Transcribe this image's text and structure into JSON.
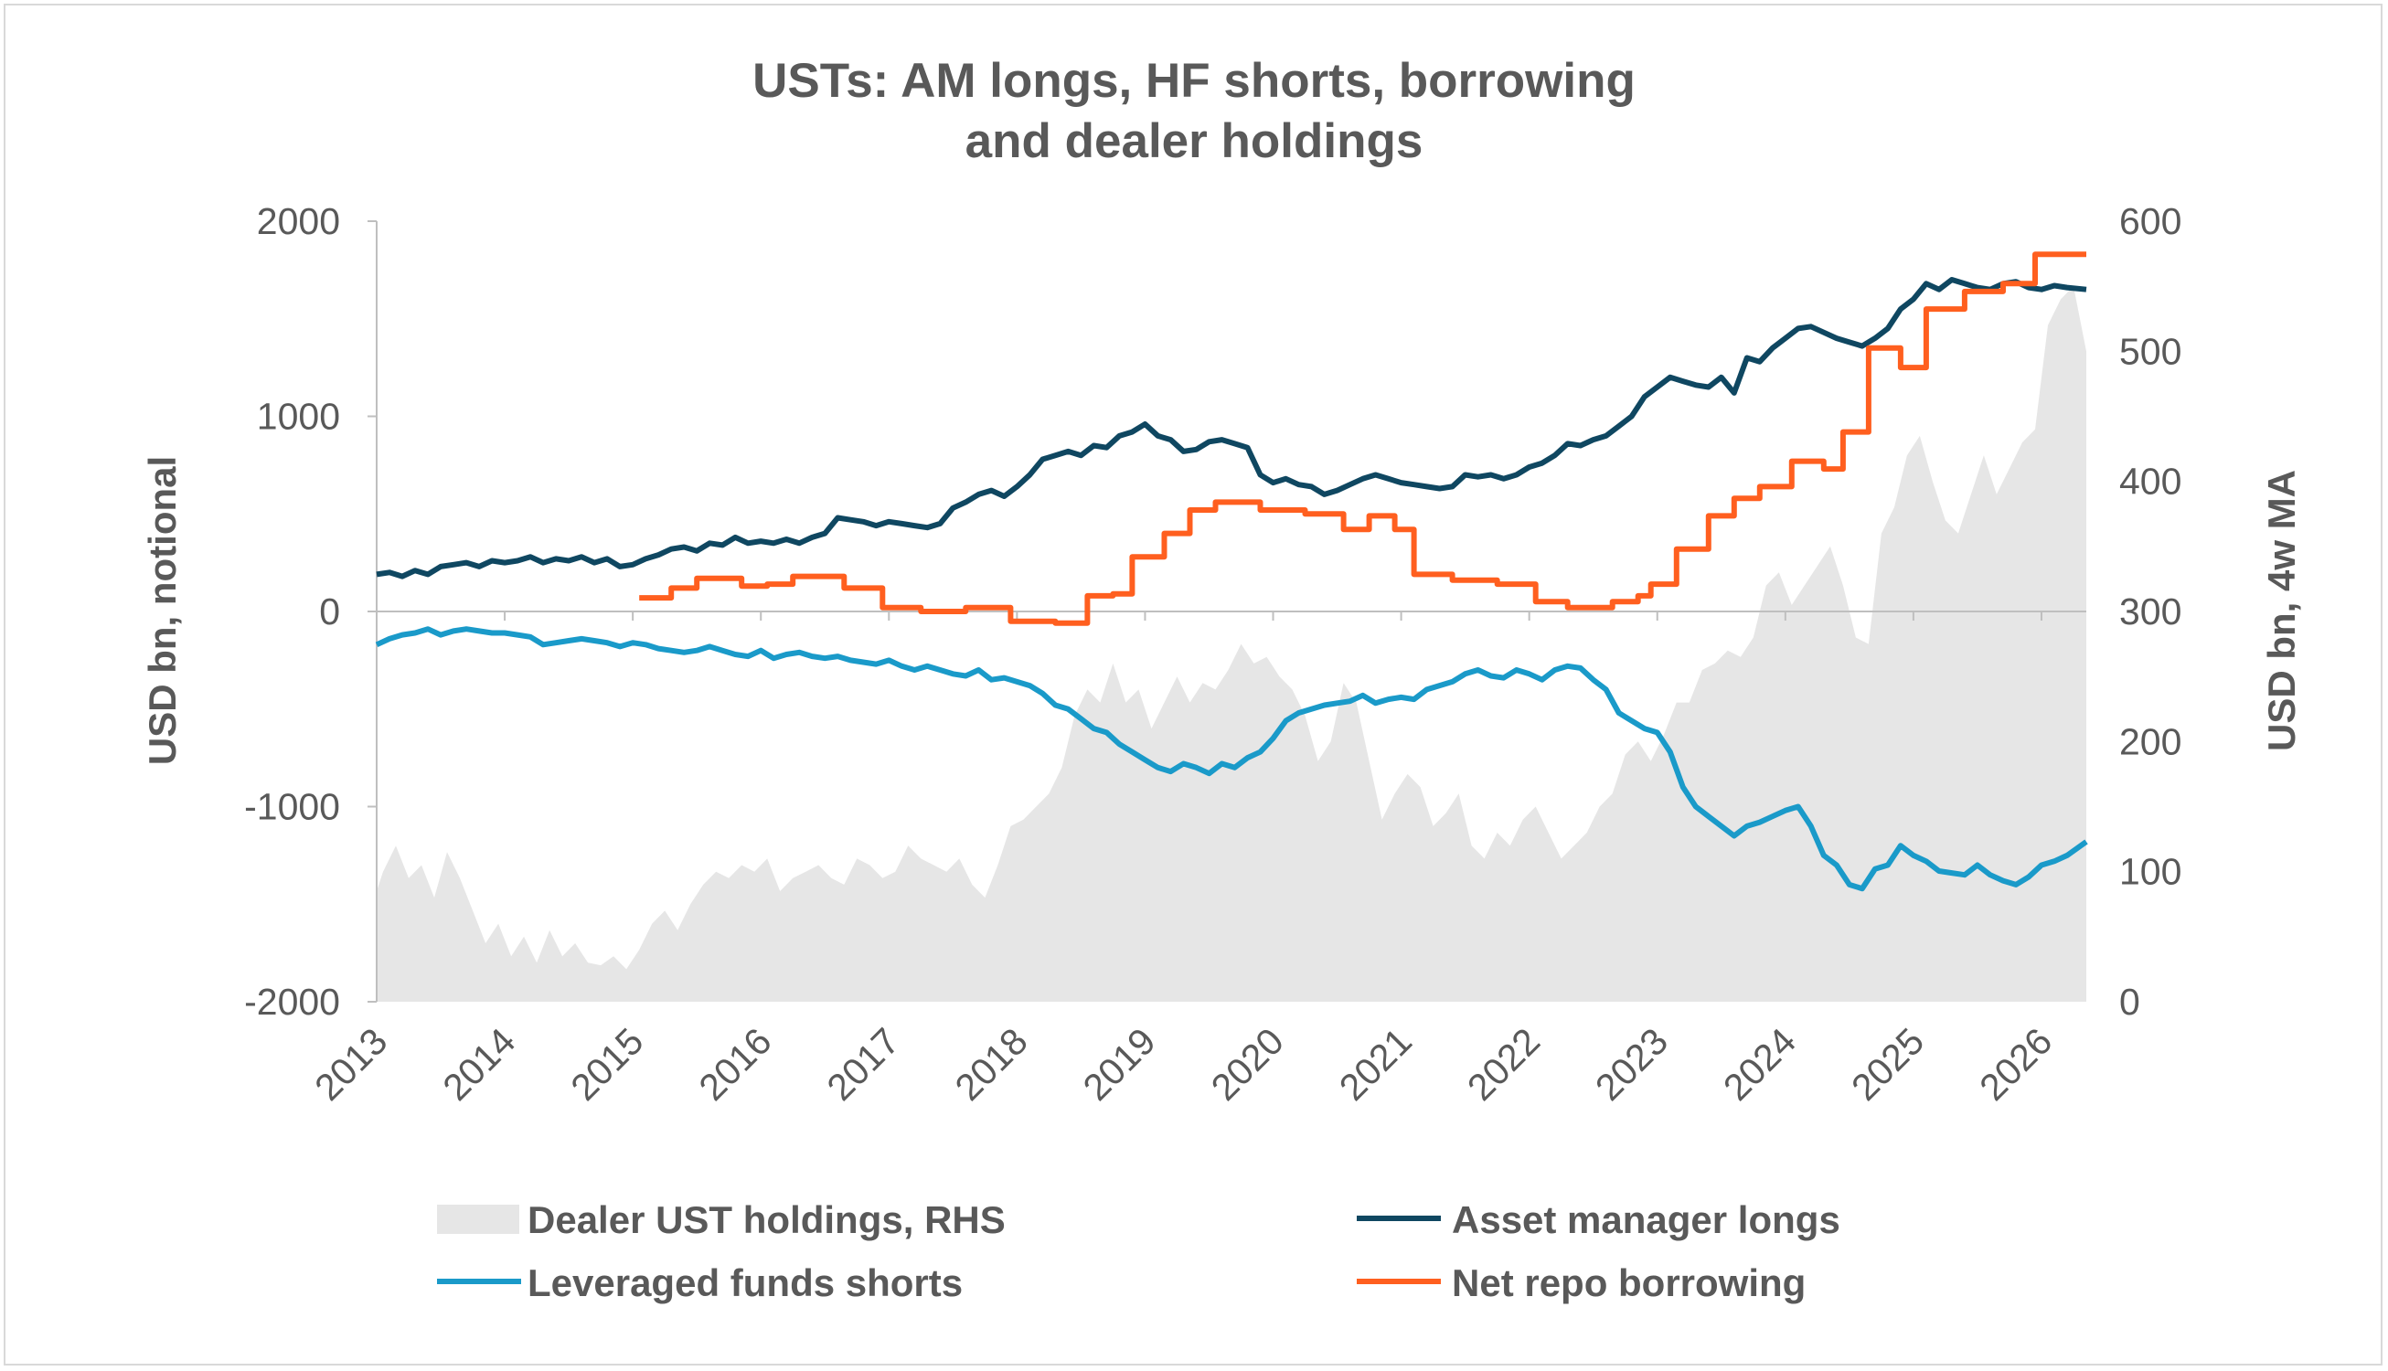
{
  "chart_data": {
    "type": "line",
    "title_line1": "USTs: AM longs, HF shorts, borrowing",
    "title_line2": "and dealer holdings",
    "ylabel_left": "USD bn, notional",
    "ylabel_right": "USD bn, 4w MA",
    "ylim_left": [
      -2000,
      2000
    ],
    "ylim_right": [
      0,
      600
    ],
    "yticks_left": [
      "2000",
      "1000",
      "0",
      "-1000",
      "-2000"
    ],
    "yticks_right": [
      "600",
      "500",
      "400",
      "300",
      "200",
      "100",
      "0"
    ],
    "xlim": [
      2013.0,
      2026.35
    ],
    "xticks": [
      "2013",
      "2014",
      "2015",
      "2016",
      "2017",
      "2018",
      "2019",
      "2020",
      "2021",
      "2022",
      "2023",
      "2024",
      "2025",
      "2026"
    ],
    "grid": false,
    "legend_position": "bottom",
    "series": [
      {
        "name": "Dealer UST holdings, RHS",
        "kind": "area",
        "axis": "right",
        "color": "#e6e6e6",
        "x": [
          2013.0,
          2013.05,
          2013.15,
          2013.25,
          2013.35,
          2013.45,
          2013.55,
          2013.65,
          2013.75,
          2013.85,
          2013.95,
          2014.05,
          2014.15,
          2014.25,
          2014.35,
          2014.45,
          2014.55,
          2014.65,
          2014.75,
          2014.85,
          2014.95,
          2015.05,
          2015.15,
          2015.25,
          2015.35,
          2015.45,
          2015.55,
          2015.65,
          2015.75,
          2015.85,
          2015.95,
          2016.05,
          2016.15,
          2016.25,
          2016.35,
          2016.45,
          2016.55,
          2016.65,
          2016.75,
          2016.85,
          2016.95,
          2017.05,
          2017.15,
          2017.25,
          2017.35,
          2017.45,
          2017.55,
          2017.65,
          2017.75,
          2017.85,
          2017.95,
          2018.05,
          2018.15,
          2018.25,
          2018.35,
          2018.45,
          2018.55,
          2018.65,
          2018.75,
          2018.85,
          2018.95,
          2019.05,
          2019.15,
          2019.25,
          2019.35,
          2019.45,
          2019.55,
          2019.65,
          2019.75,
          2019.85,
          2019.95,
          2020.05,
          2020.15,
          2020.25,
          2020.35,
          2020.45,
          2020.55,
          2020.65,
          2020.75,
          2020.85,
          2020.95,
          2021.05,
          2021.15,
          2021.25,
          2021.35,
          2021.45,
          2021.55,
          2021.65,
          2021.75,
          2021.85,
          2021.95,
          2022.05,
          2022.15,
          2022.25,
          2022.35,
          2022.45,
          2022.55,
          2022.65,
          2022.75,
          2022.85,
          2022.95,
          2023.05,
          2023.15,
          2023.25,
          2023.35,
          2023.45,
          2023.55,
          2023.65,
          2023.75,
          2023.85,
          2023.95,
          2024.05,
          2024.15,
          2024.25,
          2024.35,
          2024.45,
          2024.55,
          2024.65,
          2024.75,
          2024.85,
          2024.95,
          2025.05,
          2025.15,
          2025.25,
          2025.35,
          2025.45,
          2025.55,
          2025.65,
          2025.75,
          2025.85,
          2025.95,
          2026.05,
          2026.15,
          2026.25,
          2026.35
        ],
        "values": [
          85,
          100,
          120,
          95,
          105,
          80,
          115,
          95,
          70,
          45,
          60,
          35,
          50,
          30,
          55,
          35,
          45,
          30,
          28,
          35,
          25,
          40,
          60,
          70,
          55,
          75,
          90,
          100,
          95,
          105,
          100,
          110,
          85,
          95,
          100,
          105,
          95,
          90,
          110,
          105,
          95,
          100,
          120,
          110,
          105,
          100,
          110,
          90,
          80,
          105,
          135,
          140,
          150,
          160,
          180,
          220,
          240,
          230,
          260,
          230,
          240,
          210,
          230,
          250,
          230,
          245,
          240,
          255,
          275,
          260,
          265,
          250,
          240,
          220,
          185,
          200,
          245,
          230,
          185,
          140,
          160,
          175,
          165,
          135,
          145,
          160,
          120,
          110,
          130,
          120,
          140,
          150,
          130,
          110,
          120,
          130,
          150,
          160,
          190,
          200,
          185,
          205,
          230,
          230,
          255,
          260,
          270,
          265,
          280,
          320,
          330,
          305,
          320,
          335,
          350,
          320,
          280,
          275,
          360,
          380,
          420,
          435,
          400,
          370,
          360,
          390,
          420,
          390,
          410,
          430,
          440,
          520,
          540,
          550,
          500
        ]
      },
      {
        "name": "Asset manager longs",
        "kind": "line",
        "axis": "left",
        "color": "#0f4761",
        "x": [
          2013.0,
          2013.1,
          2013.2,
          2013.3,
          2013.4,
          2013.5,
          2013.6,
          2013.7,
          2013.8,
          2013.9,
          2014.0,
          2014.1,
          2014.2,
          2014.3,
          2014.4,
          2014.5,
          2014.6,
          2014.7,
          2014.8,
          2014.9,
          2015.0,
          2015.1,
          2015.2,
          2015.3,
          2015.4,
          2015.5,
          2015.6,
          2015.7,
          2015.8,
          2015.9,
          2016.0,
          2016.1,
          2016.2,
          2016.3,
          2016.4,
          2016.5,
          2016.6,
          2016.7,
          2016.8,
          2016.9,
          2017.0,
          2017.1,
          2017.2,
          2017.3,
          2017.4,
          2017.5,
          2017.6,
          2017.7,
          2017.8,
          2017.9,
          2018.0,
          2018.1,
          2018.2,
          2018.3,
          2018.4,
          2018.5,
          2018.6,
          2018.7,
          2018.8,
          2018.9,
          2019.0,
          2019.1,
          2019.2,
          2019.3,
          2019.4,
          2019.5,
          2019.6,
          2019.7,
          2019.8,
          2019.9,
          2020.0,
          2020.1,
          2020.2,
          2020.3,
          2020.4,
          2020.5,
          2020.6,
          2020.7,
          2020.8,
          2020.9,
          2021.0,
          2021.1,
          2021.2,
          2021.3,
          2021.4,
          2021.5,
          2021.6,
          2021.7,
          2021.8,
          2021.9,
          2022.0,
          2022.1,
          2022.2,
          2022.3,
          2022.4,
          2022.5,
          2022.6,
          2022.7,
          2022.8,
          2022.9,
          2023.0,
          2023.1,
          2023.2,
          2023.3,
          2023.4,
          2023.5,
          2023.6,
          2023.7,
          2023.8,
          2023.9,
          2024.0,
          2024.1,
          2024.2,
          2024.3,
          2024.4,
          2024.5,
          2024.6,
          2024.7,
          2024.8,
          2024.9,
          2025.0,
          2025.1,
          2025.2,
          2025.3,
          2025.4,
          2025.5,
          2025.6,
          2025.7,
          2025.8,
          2025.9,
          2026.0,
          2026.1,
          2026.2,
          2026.35
        ],
        "values": [
          190,
          200,
          180,
          210,
          190,
          230,
          240,
          250,
          230,
          260,
          250,
          260,
          280,
          250,
          270,
          260,
          280,
          250,
          270,
          230,
          240,
          270,
          290,
          320,
          330,
          310,
          350,
          340,
          380,
          350,
          360,
          350,
          370,
          350,
          380,
          400,
          480,
          470,
          460,
          440,
          460,
          450,
          440,
          430,
          450,
          530,
          560,
          600,
          620,
          590,
          640,
          700,
          780,
          800,
          820,
          800,
          850,
          840,
          900,
          920,
          960,
          900,
          880,
          820,
          830,
          870,
          880,
          860,
          840,
          700,
          660,
          680,
          650,
          640,
          600,
          620,
          650,
          680,
          700,
          680,
          660,
          650,
          640,
          630,
          640,
          700,
          690,
          700,
          680,
          700,
          740,
          760,
          800,
          860,
          850,
          880,
          900,
          950,
          1000,
          1100,
          1150,
          1200,
          1180,
          1160,
          1150,
          1200,
          1120,
          1300,
          1280,
          1350,
          1400,
          1450,
          1460,
          1430,
          1400,
          1380,
          1360,
          1400,
          1450,
          1550,
          1600,
          1680,
          1650,
          1700,
          1680,
          1660,
          1650,
          1680,
          1690,
          1660,
          1650,
          1670,
          1660,
          1650
        ]
      },
      {
        "name": "Leveraged funds shorts",
        "kind": "line",
        "axis": "left",
        "color": "#1a9ac9",
        "x": [
          2013.0,
          2013.1,
          2013.2,
          2013.3,
          2013.4,
          2013.5,
          2013.6,
          2013.7,
          2013.8,
          2013.9,
          2014.0,
          2014.1,
          2014.2,
          2014.3,
          2014.4,
          2014.5,
          2014.6,
          2014.7,
          2014.8,
          2014.9,
          2015.0,
          2015.1,
          2015.2,
          2015.3,
          2015.4,
          2015.5,
          2015.6,
          2015.7,
          2015.8,
          2015.9,
          2016.0,
          2016.1,
          2016.2,
          2016.3,
          2016.4,
          2016.5,
          2016.6,
          2016.7,
          2016.8,
          2016.9,
          2017.0,
          2017.1,
          2017.2,
          2017.3,
          2017.4,
          2017.5,
          2017.6,
          2017.7,
          2017.8,
          2017.9,
          2018.0,
          2018.1,
          2018.2,
          2018.3,
          2018.4,
          2018.5,
          2018.6,
          2018.7,
          2018.8,
          2018.9,
          2019.0,
          2019.1,
          2019.2,
          2019.3,
          2019.4,
          2019.5,
          2019.6,
          2019.7,
          2019.8,
          2019.9,
          2020.0,
          2020.1,
          2020.2,
          2020.3,
          2020.4,
          2020.5,
          2020.6,
          2020.7,
          2020.8,
          2020.9,
          2021.0,
          2021.1,
          2021.2,
          2021.3,
          2021.4,
          2021.5,
          2021.6,
          2021.7,
          2021.8,
          2021.9,
          2022.0,
          2022.1,
          2022.2,
          2022.3,
          2022.4,
          2022.5,
          2022.6,
          2022.7,
          2022.8,
          2022.9,
          2023.0,
          2023.1,
          2023.2,
          2023.3,
          2023.4,
          2023.5,
          2023.6,
          2023.7,
          2023.8,
          2023.9,
          2024.0,
          2024.1,
          2024.2,
          2024.3,
          2024.4,
          2024.5,
          2024.6,
          2024.7,
          2024.8,
          2024.9,
          2025.0,
          2025.1,
          2025.2,
          2025.3,
          2025.4,
          2025.5,
          2025.6,
          2025.7,
          2025.8,
          2025.9,
          2026.0,
          2026.1,
          2026.2,
          2026.35
        ],
        "values": [
          -170,
          -140,
          -120,
          -110,
          -90,
          -120,
          -100,
          -90,
          -100,
          -110,
          -110,
          -120,
          -130,
          -170,
          -160,
          -150,
          -140,
          -150,
          -160,
          -180,
          -160,
          -170,
          -190,
          -200,
          -210,
          -200,
          -180,
          -200,
          -220,
          -230,
          -200,
          -240,
          -220,
          -210,
          -230,
          -240,
          -230,
          -250,
          -260,
          -270,
          -250,
          -280,
          -300,
          -280,
          -300,
          -320,
          -330,
          -300,
          -350,
          -340,
          -360,
          -380,
          -420,
          -480,
          -500,
          -550,
          -600,
          -620,
          -680,
          -720,
          -760,
          -800,
          -820,
          -780,
          -800,
          -830,
          -780,
          -800,
          -750,
          -720,
          -650,
          -560,
          -520,
          -500,
          -480,
          -470,
          -460,
          -430,
          -470,
          -450,
          -440,
          -450,
          -400,
          -380,
          -360,
          -320,
          -300,
          -330,
          -340,
          -300,
          -320,
          -350,
          -300,
          -280,
          -290,
          -350,
          -400,
          -520,
          -560,
          -600,
          -620,
          -720,
          -900,
          -1000,
          -1050,
          -1100,
          -1150,
          -1100,
          -1080,
          -1050,
          -1020,
          -1000,
          -1100,
          -1250,
          -1300,
          -1400,
          -1420,
          -1320,
          -1300,
          -1200,
          -1250,
          -1280,
          -1330,
          -1340,
          -1350,
          -1300,
          -1350,
          -1380,
          -1400,
          -1360,
          -1300,
          -1280,
          -1250,
          -1180
        ]
      },
      {
        "name": "Net repo borrowing",
        "kind": "step",
        "axis": "left",
        "color": "#ff5f1f",
        "x": [
          2015.05,
          2015.3,
          2015.5,
          2015.85,
          2016.05,
          2016.25,
          2016.65,
          2016.95,
          2017.25,
          2017.6,
          2017.95,
          2018.3,
          2018.55,
          2018.75,
          2018.9,
          2019.15,
          2019.35,
          2019.55,
          2019.9,
          2020.25,
          2020.55,
          2020.75,
          2020.95,
          2021.1,
          2021.4,
          2021.75,
          2022.05,
          2022.3,
          2022.65,
          2022.85,
          2022.95,
          2023.15,
          2023.4,
          2023.6,
          2023.8,
          2024.05,
          2024.3,
          2024.45,
          2024.65,
          2024.9,
          2025.1,
          2025.4,
          2025.7,
          2025.95,
          2026.35
        ],
        "values": [
          70,
          120,
          170,
          130,
          140,
          180,
          120,
          20,
          0,
          20,
          -50,
          -60,
          80,
          90,
          280,
          400,
          520,
          560,
          520,
          500,
          420,
          490,
          420,
          190,
          160,
          140,
          50,
          20,
          50,
          80,
          140,
          320,
          490,
          580,
          640,
          770,
          730,
          920,
          1350,
          1250,
          1550,
          1640,
          1680,
          1830,
          1830
        ]
      }
    ]
  }
}
